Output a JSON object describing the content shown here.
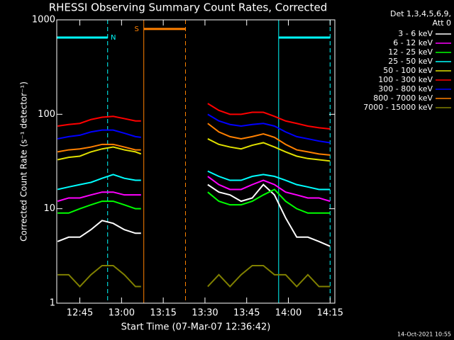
{
  "chart_data": {
    "type": "line",
    "title": "RHESSI Observing Summary Count Rates, Corrected",
    "x_label": "Start Time (07-Mar-07 12:36:42)",
    "y_label": "Corrected Count Rate (s⁻¹ detector⁻¹)",
    "footer": "14-Oct-2021 10:55",
    "legend_title": [
      "Det 1,3,4,5,6,9,",
      "Att 0"
    ],
    "legend_position": "right",
    "log_y": true,
    "xlim": [
      "12:36:42",
      "14:16:42"
    ],
    "xticks": [
      "12:45",
      "13:00",
      "13:15",
      "13:30",
      "13:45",
      "14:00",
      "14:15"
    ],
    "ylim": [
      1,
      1000
    ],
    "yticks": [
      1,
      10,
      100,
      1000
    ],
    "x": [
      "12:37",
      "12:41",
      "12:45",
      "12:49",
      "12:53",
      "12:57",
      "13:01",
      "13:05",
      "13:07",
      "13:20",
      "13:31",
      "13:35",
      "13:39",
      "13:43",
      "13:47",
      "13:51",
      "13:55",
      "13:59",
      "14:03",
      "14:07",
      "14:11",
      "14:15"
    ],
    "series": [
      {
        "name": "3 - 6 keV",
        "color": "#ffffff",
        "values": [
          4.5,
          5,
          5,
          6,
          7.5,
          7,
          6,
          5.5,
          5.5,
          null,
          18,
          15,
          14,
          12,
          13,
          18,
          14,
          8,
          5,
          5,
          4.5,
          4
        ]
      },
      {
        "name": "6 - 12 keV",
        "color": "#ff00ff",
        "values": [
          12,
          13,
          13,
          14,
          15,
          15,
          14,
          14,
          14,
          null,
          22,
          18,
          16,
          16,
          18,
          20,
          18,
          15,
          14,
          13,
          13,
          12
        ]
      },
      {
        "name": "12 - 25 keV",
        "color": "#00ff00",
        "values": [
          9,
          9,
          10,
          11,
          12,
          12,
          11,
          10,
          10,
          null,
          15,
          12,
          11,
          11,
          12,
          14,
          16,
          12,
          10,
          9,
          9,
          9
        ]
      },
      {
        "name": "25 - 50 keV",
        "color": "#00ffff",
        "values": [
          16,
          17,
          18,
          19,
          21,
          23,
          21,
          20,
          20,
          null,
          25,
          22,
          20,
          20,
          22,
          23,
          22,
          20,
          18,
          17,
          16,
          16
        ]
      },
      {
        "name": "50 - 100 keV",
        "color": "#e0e000",
        "values": [
          33,
          35,
          36,
          40,
          43,
          45,
          42,
          40,
          38,
          null,
          55,
          48,
          45,
          43,
          47,
          50,
          45,
          40,
          36,
          34,
          33,
          32
        ]
      },
      {
        "name": "100 - 300 keV",
        "color": "#ff0000",
        "values": [
          75,
          78,
          80,
          88,
          93,
          95,
          90,
          85,
          85,
          null,
          130,
          110,
          100,
          100,
          105,
          105,
          95,
          85,
          80,
          75,
          72,
          70
        ]
      },
      {
        "name": "300 - 800 keV",
        "color": "#0000ff",
        "values": [
          55,
          58,
          60,
          65,
          68,
          68,
          63,
          58,
          57,
          null,
          100,
          85,
          78,
          75,
          78,
          80,
          75,
          65,
          58,
          55,
          52,
          50
        ]
      },
      {
        "name": "800 - 7000 keV",
        "color": "#ff8000",
        "values": [
          40,
          42,
          43,
          45,
          48,
          48,
          45,
          42,
          42,
          null,
          80,
          65,
          58,
          55,
          58,
          62,
          57,
          48,
          42,
          40,
          38,
          37
        ]
      },
      {
        "name": "7000 - 15000 keV",
        "color": "#808000",
        "values": [
          2,
          2,
          1.5,
          2,
          2.5,
          2.5,
          2,
          1.5,
          1.5,
          null,
          1.5,
          2,
          1.5,
          2,
          2.5,
          2.5,
          2,
          2,
          1.5,
          2,
          1.5,
          1.5
        ]
      }
    ],
    "flags": [
      {
        "label": "N",
        "start": "12:36:42",
        "end": "12:55",
        "level": 650,
        "color": "#00ffff"
      },
      {
        "label": "S",
        "start": "13:08",
        "end": "13:23",
        "level": 800,
        "color": "#ff8000"
      },
      {
        "start": "13:56:30",
        "end": "14:15",
        "level": 650,
        "color": "#00ffff"
      }
    ],
    "vlines": [
      {
        "x": "12:55",
        "color": "#00ffff",
        "dashed": true
      },
      {
        "x": "13:08",
        "color": "#ff8000",
        "dashed": false
      },
      {
        "x": "13:23",
        "color": "#ff8000",
        "dashed": true
      },
      {
        "x": "13:56:30",
        "color": "#00ffff",
        "dashed": false
      },
      {
        "x": "14:15",
        "color": "#00ffff",
        "dashed": true
      }
    ]
  }
}
